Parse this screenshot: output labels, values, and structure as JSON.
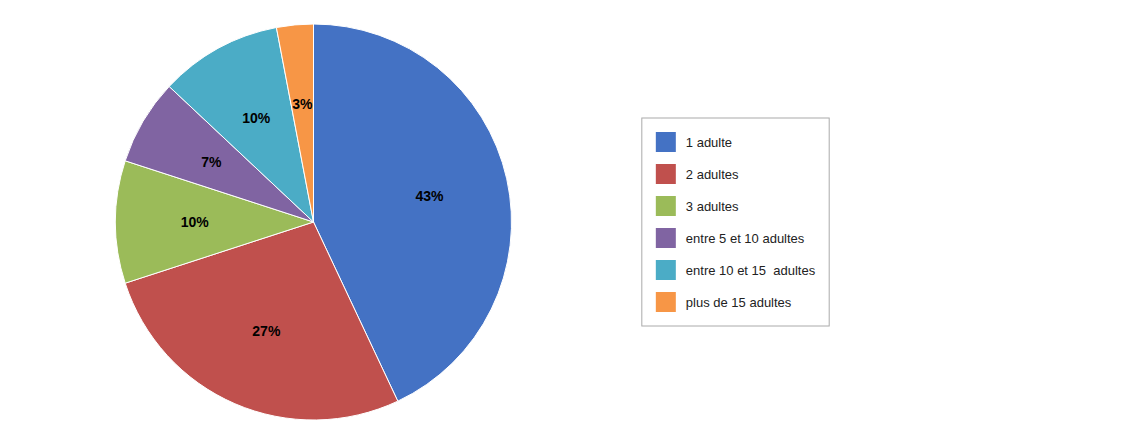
{
  "chart_data": {
    "type": "pie",
    "categories": [
      "1 adulte",
      "2 adultes",
      "3 adultes",
      "entre 5 et 10 adultes",
      "entre 10 et 15  adultes",
      "plus de 15 adultes"
    ],
    "values": [
      43,
      27,
      10,
      7,
      10,
      3
    ],
    "value_labels": [
      "43%",
      "27%",
      "10%",
      "7%",
      "10%",
      "3%"
    ],
    "colors": [
      "#4472C4",
      "#C0504D",
      "#9BBB59",
      "#8064A2",
      "#4BACC6",
      "#F79646"
    ],
    "data_labels": true,
    "legend": "right"
  }
}
